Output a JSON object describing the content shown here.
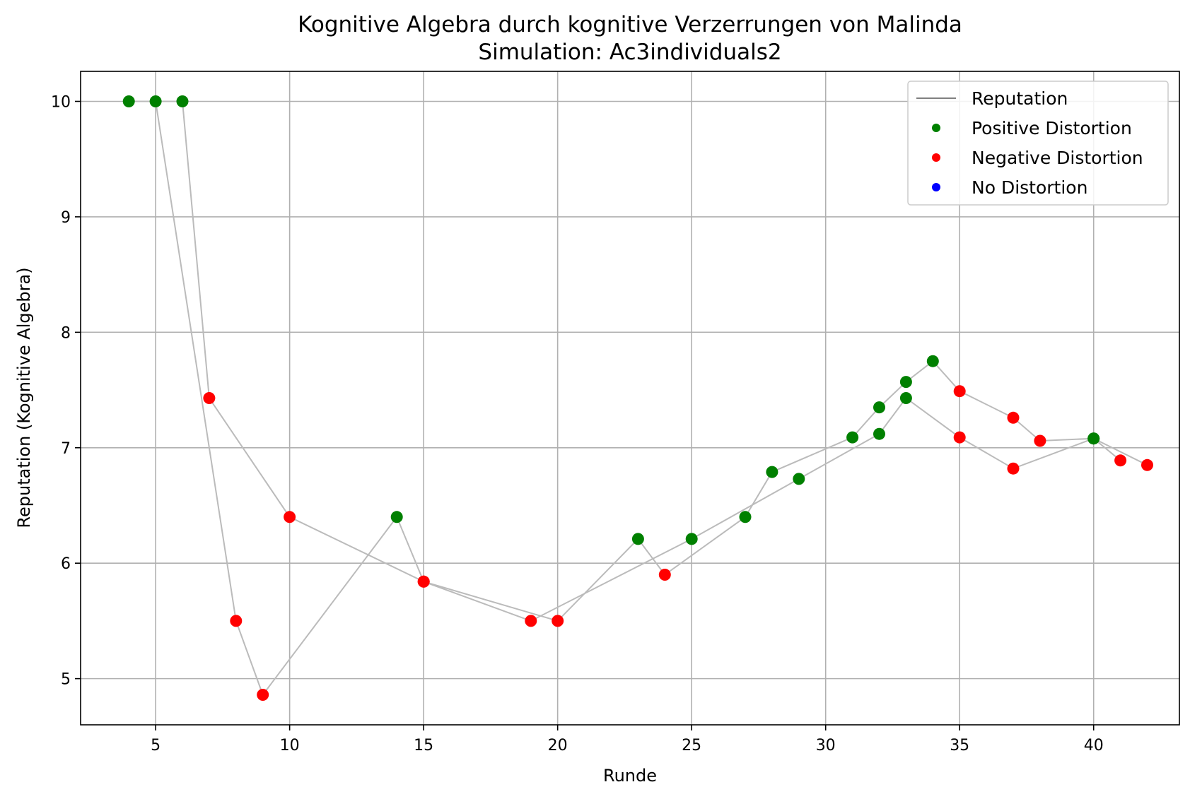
{
  "chart_data": {
    "type": "scatter",
    "title": "Kognitive Algebra durch kognitive Verzerrungen von Malinda",
    "subtitle": "Simulation: Ac3individuals2",
    "xlabel": "Runde",
    "ylabel": "Reputation (Kognitive Algebra)",
    "xlim": [
      2.2,
      43.2
    ],
    "ylim": [
      4.6,
      10.26
    ],
    "xticks": [
      5,
      10,
      15,
      20,
      25,
      30,
      35,
      40
    ],
    "yticks": [
      5,
      6,
      7,
      8,
      9,
      10
    ],
    "grid": true,
    "legend_position": "top-right",
    "line_color": "#bbbbbb",
    "legend": [
      {
        "label": "Reputation",
        "kind": "line",
        "color": "#808080"
      },
      {
        "label": "Positive Distortion",
        "kind": "marker",
        "color": "#008000"
      },
      {
        "label": "Negative Distortion",
        "kind": "marker",
        "color": "#ff0000"
      },
      {
        "label": "No Distortion",
        "kind": "marker",
        "color": "#0000ff"
      }
    ],
    "categories_colors": {
      "positive": "#008000",
      "negative": "#ff0000",
      "none": "#0000ff"
    },
    "series": [
      {
        "points": [
          {
            "x": 4,
            "y": 10.0,
            "c": "positive"
          },
          {
            "x": 6,
            "y": 10.0,
            "c": "positive"
          },
          {
            "x": 7,
            "y": 7.43,
            "c": "negative"
          },
          {
            "x": 10,
            "y": 6.4,
            "c": "negative"
          },
          {
            "x": 15,
            "y": 5.84,
            "c": "negative"
          },
          {
            "x": 20,
            "y": 5.5,
            "c": "negative"
          },
          {
            "x": 23,
            "y": 6.21,
            "c": "positive"
          },
          {
            "x": 24,
            "y": 5.9,
            "c": "negative"
          },
          {
            "x": 27,
            "y": 6.4,
            "c": "positive"
          },
          {
            "x": 28,
            "y": 6.79,
            "c": "positive"
          },
          {
            "x": 31,
            "y": 7.09,
            "c": "positive"
          },
          {
            "x": 32,
            "y": 7.35,
            "c": "positive"
          },
          {
            "x": 33,
            "y": 7.57,
            "c": "positive"
          },
          {
            "x": 34,
            "y": 7.75,
            "c": "positive"
          },
          {
            "x": 35,
            "y": 7.49,
            "c": "negative"
          },
          {
            "x": 37,
            "y": 7.26,
            "c": "negative"
          },
          {
            "x": 38,
            "y": 7.06,
            "c": "negative"
          },
          {
            "x": 40,
            "y": 7.08,
            "c": "positive"
          },
          {
            "x": 42,
            "y": 6.85,
            "c": "negative"
          }
        ]
      },
      {
        "points": [
          {
            "x": 5,
            "y": 10.0,
            "c": "positive"
          },
          {
            "x": 8,
            "y": 5.5,
            "c": "negative"
          },
          {
            "x": 9,
            "y": 4.86,
            "c": "negative"
          },
          {
            "x": 14,
            "y": 6.4,
            "c": "positive"
          },
          {
            "x": 15,
            "y": 5.84,
            "c": "negative"
          },
          {
            "x": 19,
            "y": 5.5,
            "c": "negative"
          },
          {
            "x": 25,
            "y": 6.21,
            "c": "positive"
          },
          {
            "x": 29,
            "y": 6.73,
            "c": "positive"
          },
          {
            "x": 32,
            "y": 7.12,
            "c": "positive"
          },
          {
            "x": 33,
            "y": 7.43,
            "c": "positive"
          },
          {
            "x": 35,
            "y": 7.09,
            "c": "negative"
          },
          {
            "x": 37,
            "y": 6.82,
            "c": "negative"
          },
          {
            "x": 40,
            "y": 7.08,
            "c": "positive"
          },
          {
            "x": 41,
            "y": 6.89,
            "c": "negative"
          }
        ]
      }
    ]
  }
}
